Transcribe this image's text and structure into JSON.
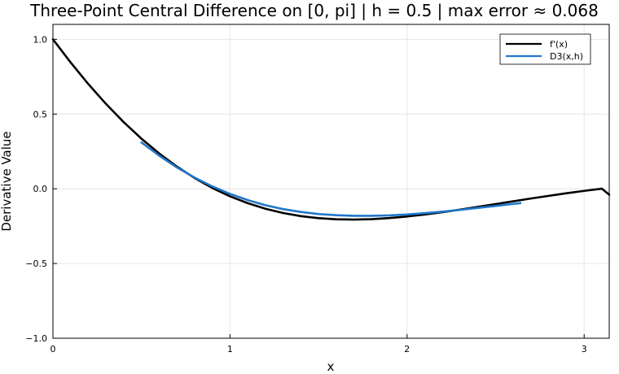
{
  "chart_data": {
    "type": "line",
    "title": "Three-Point Central Difference on [0, pi]  |  h = 0.5  |  max error ≈ 0.068",
    "xlabel": "x",
    "ylabel": "Derivative Value",
    "xlim": [
      0,
      3.14159
    ],
    "ylim": [
      -1.0,
      1.1
    ],
    "xticks": [
      0,
      1,
      2,
      3
    ],
    "xtick_labels": [
      "0",
      "1",
      "2",
      "3"
    ],
    "yticks": [
      -1.0,
      -0.5,
      0.0,
      0.5,
      1.0
    ],
    "ytick_labels": [
      "−1.0",
      "−0.5",
      "0.0",
      "0.5",
      "1.0"
    ],
    "grid": true,
    "legend_position": "top-right",
    "series": [
      {
        "name": "f'(x)",
        "color": "#000000",
        "x": [
          0,
          0.1,
          0.2,
          0.3,
          0.4,
          0.5,
          0.6,
          0.7,
          0.8,
          0.9,
          1.0,
          1.1,
          1.2,
          1.3,
          1.4,
          1.5,
          1.6,
          1.7,
          1.8,
          1.9,
          2.0,
          2.1,
          2.2,
          2.3,
          2.4,
          2.5,
          2.6,
          2.7,
          2.8,
          2.9,
          3.0,
          3.1,
          3.14159
        ],
        "values": [
          1.0,
          0.8451,
          0.7007,
          0.5674,
          0.4455,
          0.3351,
          0.2363,
          0.1487,
          0.0719,
          0.0057,
          -0.0502,
          -0.0963,
          -0.1334,
          -0.162,
          -0.1829,
          -0.1967,
          -0.2042,
          -0.2061,
          -0.2031,
          -0.196,
          -0.1854,
          -0.172,
          -0.1564,
          -0.1393,
          -0.1211,
          -0.1024,
          -0.0835,
          -0.065,
          -0.0471,
          -0.03,
          -0.014,
          0.0009,
          -0.04
        ]
      },
      {
        "name": "D3(x,h)",
        "color": "#1f77c9",
        "x": [
          0.5,
          0.6,
          0.7,
          0.8,
          0.9,
          1.0,
          1.1,
          1.2,
          1.3,
          1.4,
          1.5,
          1.6,
          1.7,
          1.8,
          1.9,
          2.0,
          2.1,
          2.2,
          2.3,
          2.4,
          2.5,
          2.6,
          2.64
        ],
        "values": [
          0.31,
          0.222,
          0.143,
          0.075,
          0.016,
          -0.034,
          -0.076,
          -0.11,
          -0.136,
          -0.155,
          -0.169,
          -0.177,
          -0.181,
          -0.181,
          -0.178,
          -0.172,
          -0.163,
          -0.153,
          -0.141,
          -0.128,
          -0.115,
          -0.101,
          -0.096
        ]
      }
    ]
  }
}
